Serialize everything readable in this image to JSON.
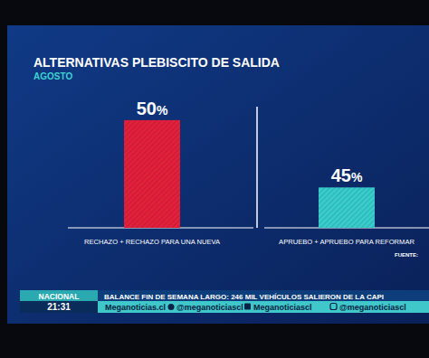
{
  "chart_data": {
    "type": "bar",
    "title": "ALTERNATIVAS PLEBISCITO DE SALIDA",
    "subtitle": "AGOSTO",
    "categories": [
      "RECHAZO + RECHAZO PARA UNA NUEVA",
      "APRUEBO + APRUEBO PARA REFORMAR"
    ],
    "values": [
      50,
      45
    ],
    "value_labels": [
      "50%",
      "45%"
    ],
    "colors": [
      "#e3203c",
      "#38cccc"
    ],
    "ylim": [
      42,
      51
    ],
    "yticks": [],
    "tick_labels": "x",
    "data_labels": true,
    "grid": false,
    "annotations": [
      "FUENTE:",
      "NACIONAL",
      "21:31",
      "BALANCE FIN DE SEMANA LARGO: 246 MIL VEHÍCULOS SALIERON DE LA CAPI",
      "Meganoticias.cl",
      "@meganoticiascl",
      "Meganoticiascl",
      "@meganoticiascl"
    ]
  }
}
